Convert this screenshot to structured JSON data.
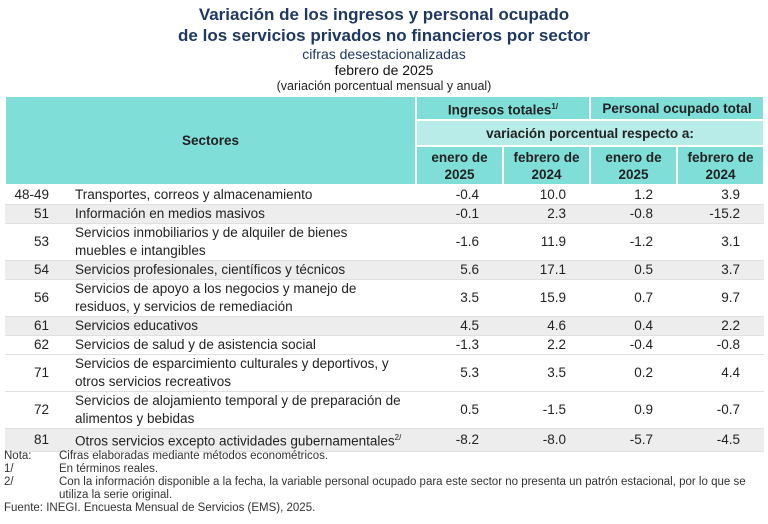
{
  "title": {
    "line1": "Variación de los ingresos y personal ocupado",
    "line2": "de los servicios privados no financieros por sector",
    "line3": "cifras desestacionalizadas",
    "line4": "febrero de 2025",
    "line5": "(variación porcentual mensual y anual)"
  },
  "header": {
    "sectores": "Sectores",
    "ingresos": "Ingresos totales",
    "ingresos_sup": "1/",
    "personal": "Personal ocupado total",
    "variacion": "variación porcentual respecto a:",
    "cols": [
      "enero de 2025",
      "febrero de 2024",
      "enero de 2025",
      "febrero de 2024"
    ]
  },
  "rows": [
    {
      "code": "48-49",
      "name": "Transportes, correos y almacenamiento",
      "sup": "",
      "v": [
        "-0.4",
        "10.0",
        "1.2",
        "3.9"
      ]
    },
    {
      "code": "51",
      "name": "Información en medios masivos",
      "sup": "",
      "v": [
        "-0.1",
        "2.3",
        "-0.8",
        "-15.2"
      ]
    },
    {
      "code": "53",
      "name": "Servicios inmobiliarios y de alquiler de bienes muebles e intangibles",
      "sup": "",
      "v": [
        "-1.6",
        "11.9",
        "-1.2",
        "3.1"
      ]
    },
    {
      "code": "54",
      "name": "Servicios profesionales, científicos y técnicos",
      "sup": "",
      "v": [
        "5.6",
        "17.1",
        "0.5",
        "3.7"
      ]
    },
    {
      "code": "56",
      "name": "Servicios de apoyo a los negocios y manejo de residuos, y servicios de remediación",
      "sup": "",
      "v": [
        "3.5",
        "15.9",
        "0.7",
        "9.7"
      ]
    },
    {
      "code": "61",
      "name": "Servicios educativos",
      "sup": "",
      "v": [
        "4.5",
        "4.6",
        "0.4",
        "2.2"
      ]
    },
    {
      "code": "62",
      "name": "Servicios de salud y de asistencia social",
      "sup": "",
      "v": [
        "-1.3",
        "2.2",
        "-0.4",
        "-0.8"
      ]
    },
    {
      "code": "71",
      "name": "Servicios de esparcimiento culturales y deportivos, y otros servicios recreativos",
      "sup": "",
      "v": [
        "5.3",
        "3.5",
        "0.2",
        "4.4"
      ]
    },
    {
      "code": "72",
      "name": "Servicios de alojamiento temporal y de preparación de alimentos y bebidas",
      "sup": "",
      "v": [
        "0.5",
        "-1.5",
        "0.9",
        "-0.7"
      ]
    },
    {
      "code": "81",
      "name": "Otros servicios excepto actividades gubernamentales",
      "sup": "2/",
      "v": [
        "-8.2",
        "-8.0",
        "-5.7",
        "-4.5"
      ]
    }
  ],
  "notes": [
    {
      "k": "Nota:",
      "t": "Cifras elaboradas mediante métodos econométricos."
    },
    {
      "k": "1/",
      "t": "En términos reales."
    },
    {
      "k": "2/",
      "t": "Con la información disponible a la fecha, la variable personal ocupado para este sector no presenta un patrón estacional, por lo que se utiliza la serie original."
    }
  ],
  "source": "Fuente: INEGI. Encuesta Mensual de Servicios (EMS), 2025.",
  "colors": {
    "header": "#80ded8",
    "subheader": "#b8ece8",
    "title": "#1f3864",
    "stripe": "#ededed"
  }
}
